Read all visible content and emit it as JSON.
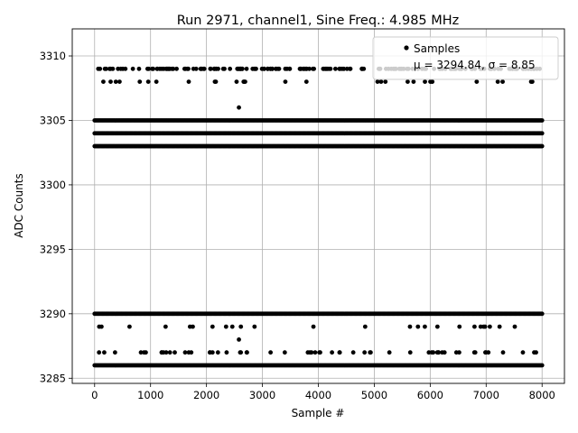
{
  "chart_data": {
    "type": "scatter",
    "title": "Run 2971, channel1, Sine Freq.: 4.985 MHz",
    "xlabel": "Sample #",
    "ylabel": "ADC Counts",
    "xlim": [
      -400,
      8400
    ],
    "ylim": [
      3284.6,
      3312.1
    ],
    "x_ticks": [
      0,
      1000,
      2000,
      3000,
      4000,
      5000,
      6000,
      7000,
      8000
    ],
    "y_ticks": [
      3285,
      3290,
      3295,
      3300,
      3305,
      3310
    ],
    "grid": true,
    "legend_position": "top-right",
    "series": [
      {
        "name": "Samples",
        "color": "#000000",
        "x_range": [
          0,
          8000
        ],
        "dense_levels": [
          3286,
          3290,
          3303,
          3304,
          3305
        ],
        "sparse_levels": [
          {
            "y": 3309,
            "count": 180
          },
          {
            "y": 3308,
            "count": 30
          },
          {
            "y": 3306,
            "count": 1
          },
          {
            "y": 3289,
            "count": 25
          },
          {
            "y": 3288,
            "count": 1
          },
          {
            "y": 3287,
            "count": 60
          }
        ]
      }
    ],
    "legend_stats": "μ = 3294.84, σ = 8.85"
  }
}
